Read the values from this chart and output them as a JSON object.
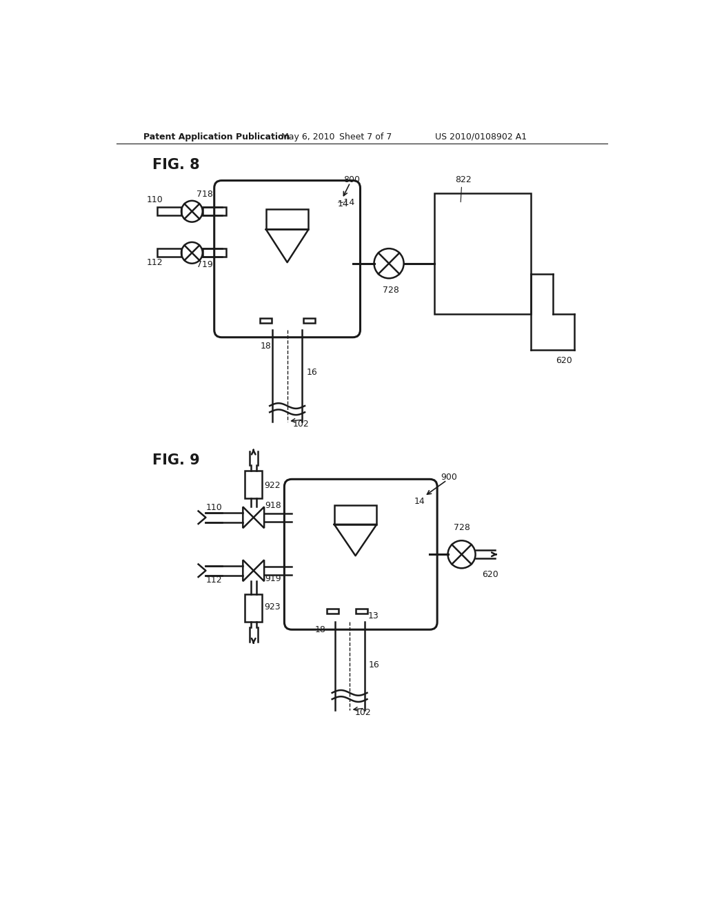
{
  "bg_color": "#ffffff",
  "line_color": "#1a1a1a",
  "header_text": "Patent Application Publication",
  "header_date": "May 6, 2010",
  "header_sheet": "Sheet 7 of 7",
  "header_patent": "US 2010/0108902 A1",
  "fig8_label": "FIG. 8",
  "fig9_label": "FIG. 9"
}
